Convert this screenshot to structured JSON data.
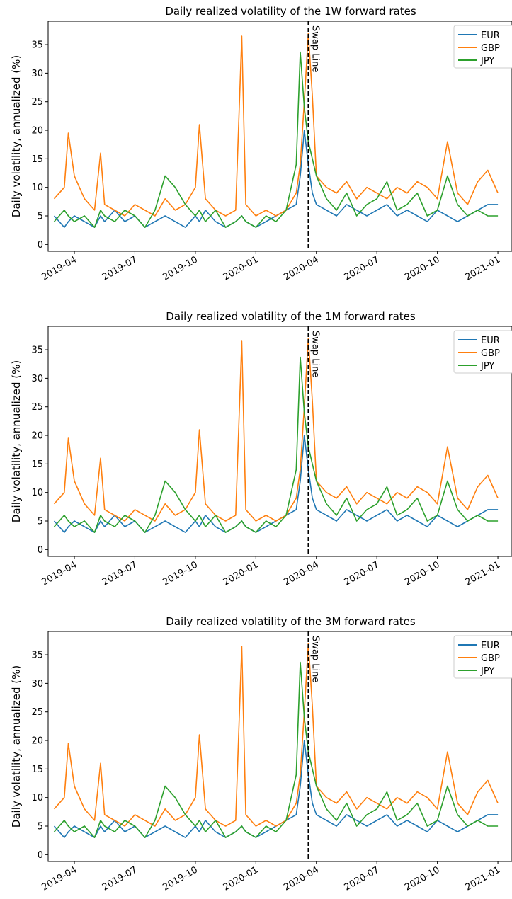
{
  "chart_data": [
    {
      "type": "line",
      "title": "Daily realized volatility of the 1W forward rates",
      "y_label": "Daily volatility, annualized (%)",
      "x": [
        2.0,
        2.5,
        2.7,
        3.0,
        3.5,
        4.0,
        4.3,
        4.5,
        5.0,
        5.5,
        6.0,
        6.5,
        7.0,
        7.5,
        8.0,
        8.5,
        9.0,
        9.2,
        9.5,
        10.0,
        10.5,
        11.0,
        11.3,
        11.5,
        12.0,
        12.5,
        13.0,
        13.5,
        14.0,
        14.2,
        14.4,
        14.6,
        14.8,
        15.0,
        15.5,
        16.0,
        16.5,
        17.0,
        17.5,
        18.0,
        18.5,
        19.0,
        19.5,
        20.0,
        20.5,
        21.0,
        21.5,
        22.0,
        22.5,
        23.0,
        23.5,
        24.0
      ],
      "series": [
        {
          "name": "EUR",
          "color": "#1f77b4",
          "values": [
            5,
            3,
            4,
            5,
            4,
            3,
            5,
            4,
            6,
            4,
            5,
            3,
            4,
            5,
            4,
            3,
            5,
            4,
            6,
            4,
            3,
            4,
            5,
            4,
            3,
            4,
            5,
            6,
            7,
            12,
            20,
            14,
            9,
            7,
            6,
            5,
            7,
            6,
            5,
            6,
            7,
            5,
            6,
            5,
            4,
            6,
            5,
            4,
            5,
            6,
            7,
            7
          ]
        },
        {
          "name": "GBP",
          "color": "#ff7f0e",
          "values": [
            8,
            10,
            19.5,
            12,
            8,
            6,
            16,
            7,
            6,
            5,
            7,
            6,
            5,
            8,
            6,
            7,
            10,
            21,
            8,
            6,
            5,
            6,
            36.5,
            7,
            5,
            6,
            5,
            6,
            9,
            14,
            25,
            37,
            26,
            12,
            10,
            9,
            11,
            8,
            10,
            9,
            8,
            10,
            9,
            11,
            10,
            8,
            18,
            9,
            7,
            11,
            13,
            9
          ]
        },
        {
          "name": "JPY",
          "color": "#2ca02c",
          "values": [
            4,
            6,
            5,
            4,
            5,
            3,
            6,
            5,
            4,
            6,
            5,
            3,
            6,
            12,
            10,
            7,
            5,
            6,
            4,
            6,
            3,
            4,
            5,
            4,
            3,
            5,
            4,
            6,
            14,
            33.7,
            24,
            18,
            15,
            12,
            8,
            6,
            9,
            5,
            7,
            8,
            11,
            6,
            7,
            9,
            5,
            6,
            12,
            7,
            5,
            6,
            5,
            5
          ]
        }
      ],
      "vline": {
        "x": 14.6,
        "label": "Swap Line"
      },
      "xlim": [
        1.7,
        24.7
      ],
      "ylim": [
        -1.2,
        39.1
      ],
      "xticks": [
        {
          "value": 3,
          "label": "2019-04"
        },
        {
          "value": 6,
          "label": "2019-07"
        },
        {
          "value": 9,
          "label": "2019-10"
        },
        {
          "value": 12,
          "label": "2020-01"
        },
        {
          "value": 15,
          "label": "2020-04"
        },
        {
          "value": 18,
          "label": "2020-07"
        },
        {
          "value": 21,
          "label": "2020-10"
        },
        {
          "value": 24,
          "label": "2021-01"
        }
      ],
      "yticks": [
        0,
        5,
        10,
        15,
        20,
        25,
        30,
        35
      ],
      "legend": "upper right"
    },
    {
      "type": "line",
      "title": "Daily realized volatility of the 1M forward rates",
      "y_label": "Daily volatility, annualized (%)",
      "x": [
        2.0,
        2.5,
        2.7,
        3.0,
        3.5,
        4.0,
        4.3,
        4.5,
        5.0,
        5.5,
        6.0,
        6.5,
        7.0,
        7.5,
        8.0,
        8.5,
        9.0,
        9.2,
        9.5,
        10.0,
        10.5,
        11.0,
        11.3,
        11.5,
        12.0,
        12.5,
        13.0,
        13.5,
        14.0,
        14.2,
        14.4,
        14.6,
        14.8,
        15.0,
        15.5,
        16.0,
        16.5,
        17.0,
        17.5,
        18.0,
        18.5,
        19.0,
        19.5,
        20.0,
        20.5,
        21.0,
        21.5,
        22.0,
        22.5,
        23.0,
        23.5,
        24.0
      ],
      "series": [
        {
          "name": "EUR",
          "color": "#1f77b4",
          "values": [
            5,
            3,
            4,
            5,
            4,
            3,
            5,
            4,
            6,
            4,
            5,
            3,
            4,
            5,
            4,
            3,
            5,
            4,
            6,
            4,
            3,
            4,
            5,
            4,
            3,
            4,
            5,
            6,
            7,
            12,
            20,
            14,
            9,
            7,
            6,
            5,
            7,
            6,
            5,
            6,
            7,
            5,
            6,
            5,
            4,
            6,
            5,
            4,
            5,
            6,
            7,
            7
          ]
        },
        {
          "name": "GBP",
          "color": "#ff7f0e",
          "values": [
            8,
            10,
            19.5,
            12,
            8,
            6,
            16,
            7,
            6,
            5,
            7,
            6,
            5,
            8,
            6,
            7,
            10,
            21,
            8,
            6,
            5,
            6,
            36.5,
            7,
            5,
            6,
            5,
            6,
            9,
            14,
            25,
            37,
            26,
            12,
            10,
            9,
            11,
            8,
            10,
            9,
            8,
            10,
            9,
            11,
            10,
            8,
            18,
            9,
            7,
            11,
            13,
            9
          ]
        },
        {
          "name": "JPY",
          "color": "#2ca02c",
          "values": [
            4,
            6,
            5,
            4,
            5,
            3,
            6,
            5,
            4,
            6,
            5,
            3,
            6,
            12,
            10,
            7,
            5,
            6,
            4,
            6,
            3,
            4,
            5,
            4,
            3,
            5,
            4,
            6,
            14,
            33.7,
            24,
            18,
            15,
            12,
            8,
            6,
            9,
            5,
            7,
            8,
            11,
            6,
            7,
            9,
            5,
            6,
            12,
            7,
            5,
            6,
            5,
            5
          ]
        }
      ],
      "vline": {
        "x": 14.6,
        "label": "Swap Line"
      },
      "xlim": [
        1.7,
        24.7
      ],
      "ylim": [
        -1.2,
        39.1
      ],
      "xticks": [
        {
          "value": 3,
          "label": "2019-04"
        },
        {
          "value": 6,
          "label": "2019-07"
        },
        {
          "value": 9,
          "label": "2019-10"
        },
        {
          "value": 12,
          "label": "2020-01"
        },
        {
          "value": 15,
          "label": "2020-04"
        },
        {
          "value": 18,
          "label": "2020-07"
        },
        {
          "value": 21,
          "label": "2020-10"
        },
        {
          "value": 24,
          "label": "2021-01"
        }
      ],
      "yticks": [
        0,
        5,
        10,
        15,
        20,
        25,
        30,
        35
      ],
      "legend": "upper right"
    },
    {
      "type": "line",
      "title": "Daily realized volatility of the 3M forward rates",
      "y_label": "Daily volatility, annualized (%)",
      "x": [
        2.0,
        2.5,
        2.7,
        3.0,
        3.5,
        4.0,
        4.3,
        4.5,
        5.0,
        5.5,
        6.0,
        6.5,
        7.0,
        7.5,
        8.0,
        8.5,
        9.0,
        9.2,
        9.5,
        10.0,
        10.5,
        11.0,
        11.3,
        11.5,
        12.0,
        12.5,
        13.0,
        13.5,
        14.0,
        14.2,
        14.4,
        14.6,
        14.8,
        15.0,
        15.5,
        16.0,
        16.5,
        17.0,
        17.5,
        18.0,
        18.5,
        19.0,
        19.5,
        20.0,
        20.5,
        21.0,
        21.5,
        22.0,
        22.5,
        23.0,
        23.5,
        24.0
      ],
      "series": [
        {
          "name": "EUR",
          "color": "#1f77b4",
          "values": [
            5,
            3,
            4,
            5,
            4,
            3,
            5,
            4,
            6,
            4,
            5,
            3,
            4,
            5,
            4,
            3,
            5,
            4,
            6,
            4,
            3,
            4,
            5,
            4,
            3,
            4,
            5,
            6,
            7,
            12,
            20,
            14,
            9,
            7,
            6,
            5,
            7,
            6,
            5,
            6,
            7,
            5,
            6,
            5,
            4,
            6,
            5,
            4,
            5,
            6,
            7,
            7
          ]
        },
        {
          "name": "GBP",
          "color": "#ff7f0e",
          "values": [
            8,
            10,
            19.5,
            12,
            8,
            6,
            16,
            7,
            6,
            5,
            7,
            6,
            5,
            8,
            6,
            7,
            10,
            21,
            8,
            6,
            5,
            6,
            36.5,
            7,
            5,
            6,
            5,
            6,
            9,
            14,
            25,
            37,
            26,
            12,
            10,
            9,
            11,
            8,
            10,
            9,
            8,
            10,
            9,
            11,
            10,
            8,
            18,
            9,
            7,
            11,
            13,
            9
          ]
        },
        {
          "name": "JPY",
          "color": "#2ca02c",
          "values": [
            4,
            6,
            5,
            4,
            5,
            3,
            6,
            5,
            4,
            6,
            5,
            3,
            6,
            12,
            10,
            7,
            5,
            6,
            4,
            6,
            3,
            4,
            5,
            4,
            3,
            5,
            4,
            6,
            14,
            33.7,
            24,
            18,
            15,
            12,
            8,
            6,
            9,
            5,
            7,
            8,
            11,
            6,
            7,
            9,
            5,
            6,
            12,
            7,
            5,
            6,
            5,
            5
          ]
        }
      ],
      "vline": {
        "x": 14.6,
        "label": "Swap Line"
      },
      "xlim": [
        1.7,
        24.7
      ],
      "ylim": [
        -1.2,
        39.1
      ],
      "xticks": [
        {
          "value": 3,
          "label": "2019-04"
        },
        {
          "value": 6,
          "label": "2019-07"
        },
        {
          "value": 9,
          "label": "2019-10"
        },
        {
          "value": 12,
          "label": "2020-01"
        },
        {
          "value": 15,
          "label": "2020-04"
        },
        {
          "value": 18,
          "label": "2020-07"
        },
        {
          "value": 21,
          "label": "2020-10"
        },
        {
          "value": 24,
          "label": "2021-01"
        }
      ],
      "yticks": [
        0,
        5,
        10,
        15,
        20,
        25,
        30,
        35
      ],
      "legend": "upper right"
    }
  ]
}
